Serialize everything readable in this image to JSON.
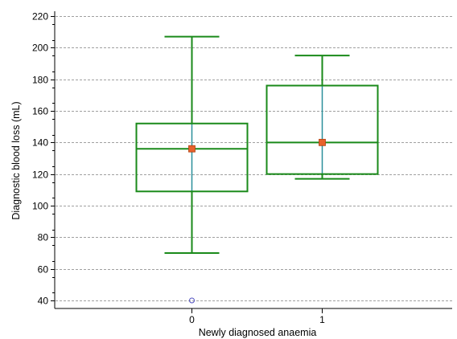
{
  "chart_data": {
    "type": "box",
    "xlabel": "Newly diagnosed anaemia",
    "ylabel": "Diagnostic blood loss (mL)",
    "ylim": [
      35,
      225
    ],
    "yticks": [
      40,
      60,
      80,
      100,
      120,
      140,
      160,
      180,
      200,
      220
    ],
    "categories": [
      "0",
      "1"
    ],
    "grid": "horizontal dashed",
    "groups": [
      {
        "category": "0",
        "whisker_low": 70,
        "q1": 109,
        "median": 136,
        "q3": 152,
        "whisker_high": 207,
        "mean": 136,
        "outliers": [
          40
        ]
      },
      {
        "category": "1",
        "whisker_low": 117,
        "q1": 120,
        "median": 140,
        "q3": 176,
        "whisker_high": 195,
        "mean": 140,
        "outliers": []
      }
    ],
    "colors": {
      "box": "#1a8a1a",
      "whisker_stem": "#2a8f9a",
      "mean_marker": "#e8622c",
      "outlier": "#5050c0",
      "grid": "#a0a0a0"
    }
  }
}
